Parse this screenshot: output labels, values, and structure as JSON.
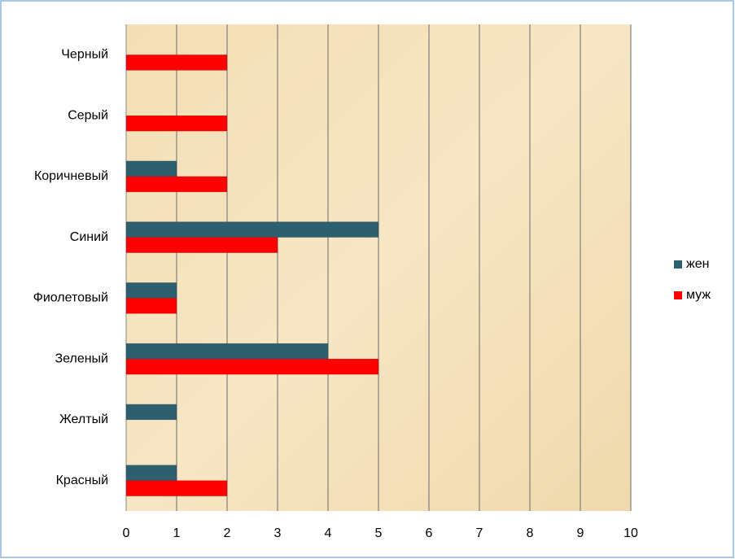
{
  "chart_data": {
    "type": "bar",
    "orientation": "horizontal",
    "categories": [
      "Красный",
      "Желтый",
      "Зеленый",
      "Фиолетовый",
      "Синий",
      "Коричневый",
      "Серый",
      "Черный"
    ],
    "series": [
      {
        "name": "жен",
        "color": "#2e5f6e",
        "values": [
          1,
          1,
          4,
          1,
          5,
          1,
          0,
          0
        ]
      },
      {
        "name": "муж",
        "color": "#ff0000",
        "values": [
          2,
          0,
          5,
          1,
          3,
          2,
          2,
          2
        ]
      }
    ],
    "xlim": [
      0,
      10
    ],
    "xticks": [
      0,
      1,
      2,
      3,
      4,
      5,
      6,
      7,
      8,
      9,
      10
    ],
    "grid": true,
    "legend": "right"
  }
}
